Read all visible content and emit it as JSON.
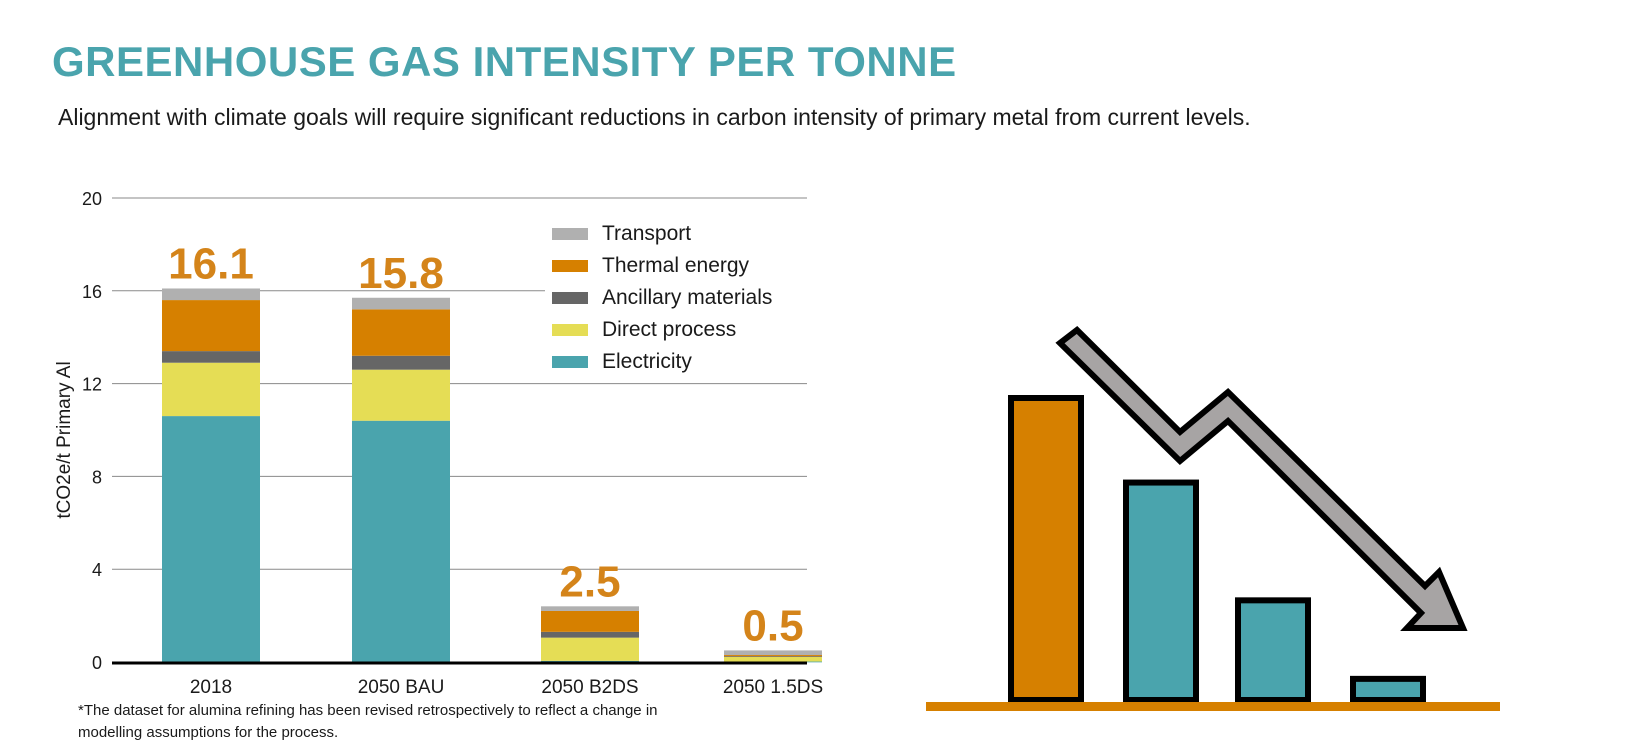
{
  "header": {
    "title": "GREENHOUSE GAS INTENSITY PER TONNE",
    "subtitle": "Alignment with climate goals will require significant reductions in carbon intensity of primary metal from current levels."
  },
  "footnote": "*The dataset for alumina refining has been revised retrospectively to reflect a change in modelling assumptions for the process.",
  "colors": {
    "title": "#4aa4ad",
    "total_label": "#d4841a",
    "Transport": "#b0b0b0",
    "Thermal energy": "#d68000",
    "Ancillary materials": "#666666",
    "Direct process": "#e5dd55",
    "Electricity": "#4aa4ad",
    "arrow": "#a7a4a4",
    "illustration_baseline": "#d68000"
  },
  "chart_data": {
    "type": "bar",
    "stacked": true,
    "title": "GREENHOUSE GAS INTENSITY PER TONNE",
    "xlabel": "",
    "ylabel": "tCO2e/t Primary Al",
    "ylim": [
      0,
      20
    ],
    "yticks": [
      0,
      4,
      8,
      12,
      16,
      20
    ],
    "ytick_labels": [
      "0",
      "4",
      "8",
      "12",
      "16",
      "20"
    ],
    "grid": true,
    "legend_position": "top-right",
    "categories": [
      "2018",
      "2050 BAU",
      "2050 B2DS",
      "2050 1.5DS"
    ],
    "totals": [
      16.1,
      15.8,
      2.5,
      0.5
    ],
    "total_labels": [
      "16.1",
      "15.8",
      "2.5",
      "0.5"
    ],
    "series": [
      {
        "name": "Electricity",
        "values": [
          10.6,
          10.4,
          0.05,
          0.02
        ]
      },
      {
        "name": "Direct process",
        "values": [
          2.3,
          2.2,
          1.0,
          0.2
        ]
      },
      {
        "name": "Ancillary materials",
        "values": [
          0.5,
          0.6,
          0.25,
          0.03
        ]
      },
      {
        "name": "Thermal energy",
        "values": [
          2.2,
          2.0,
          0.9,
          0.05
        ]
      },
      {
        "name": "Transport",
        "values": [
          0.5,
          0.5,
          0.2,
          0.2
        ]
      }
    ],
    "legend_order": [
      "Transport",
      "Thermal energy",
      "Ancillary materials",
      "Direct process",
      "Electricity"
    ]
  },
  "illustration": {
    "icon": "declining-bar-chart-with-down-arrow-icon",
    "relative_bar_levels": [
      1.0,
      0.72,
      0.33,
      0.07
    ],
    "bar_colors": [
      "#d68000",
      "#4aa4ad",
      "#4aa4ad",
      "#4aa4ad"
    ]
  }
}
